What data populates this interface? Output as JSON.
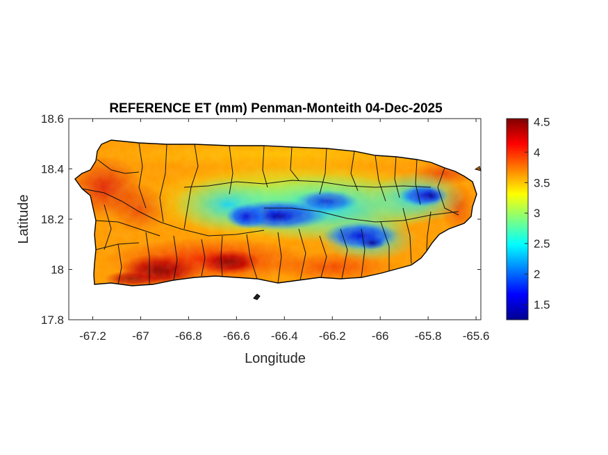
{
  "chart_data": {
    "type": "heatmap",
    "title": "REFERENCE ET (mm) Penman-Monteith 04-Dec-2025",
    "xlabel": "Longitude",
    "ylabel": "Latitude",
    "xlim": [
      -67.3,
      -65.58
    ],
    "ylim": [
      17.8,
      18.6
    ],
    "xticks": [
      "-67.2",
      "-67",
      "-66.8",
      "-66.6",
      "-66.4",
      "-66.2",
      "-66",
      "-65.8",
      "-65.6"
    ],
    "xtick_values": [
      -67.2,
      -67.0,
      -66.8,
      -66.6,
      -66.4,
      -66.2,
      -66.0,
      -65.8,
      -65.6
    ],
    "yticks": [
      "18.6",
      "18.4",
      "18.2",
      "18",
      "17.8"
    ],
    "ytick_values": [
      18.6,
      18.4,
      18.2,
      18.0,
      17.8
    ],
    "colorbar": {
      "colormap": "jet",
      "range": [
        1.25,
        4.55
      ],
      "ticks": [
        "4.5",
        "4",
        "3.5",
        "3",
        "2.5",
        "2",
        "1.5"
      ],
      "tick_values": [
        4.5,
        4.0,
        3.5,
        3.0,
        2.5,
        2.0,
        1.5
      ]
    },
    "colors": {
      "low": "#00008f",
      "mid": "#7fff7f",
      "high": "#800000",
      "boundary": "#000000"
    }
  }
}
